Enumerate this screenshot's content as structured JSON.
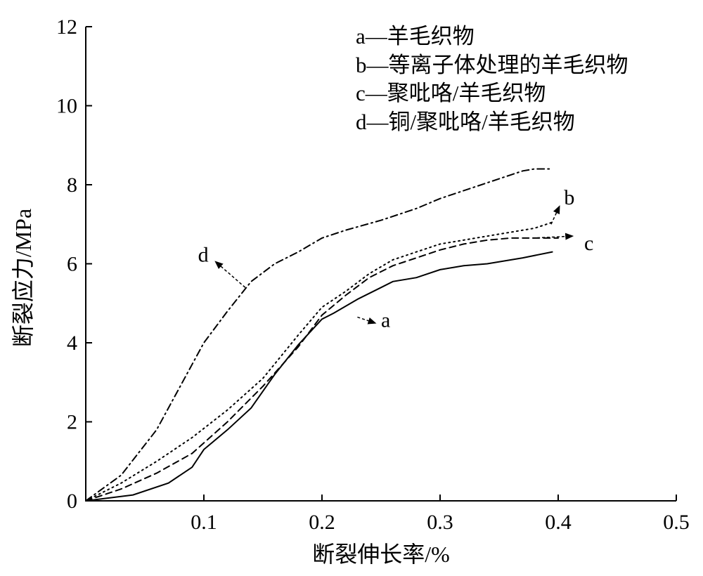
{
  "chart_data": {
    "type": "line",
    "title": "",
    "xlabel": "断裂伸长率/%",
    "ylabel": "断裂应力/MPa",
    "xlim": [
      0,
      0.5
    ],
    "ylim": [
      0,
      12
    ],
    "xticks": [
      "0.1",
      "0.2",
      "0.3",
      "0.4",
      "0.5"
    ],
    "yticks": [
      "0",
      "2",
      "4",
      "6",
      "8",
      "10",
      "12"
    ],
    "grid": false,
    "legend_position": "top-right",
    "legend": [
      "a—羊毛织物",
      "b—等离子体处理的羊毛织物",
      "c—聚吡咯/羊毛织物",
      "d—铜/聚吡咯/羊毛织物"
    ],
    "series": [
      {
        "name": "a",
        "style": "solid",
        "x": [
          0,
          0.04,
          0.07,
          0.09,
          0.1,
          0.12,
          0.14,
          0.16,
          0.18,
          0.2,
          0.21,
          0.23,
          0.25,
          0.26,
          0.28,
          0.3,
          0.32,
          0.34,
          0.37,
          0.395
        ],
        "y": [
          0,
          0.15,
          0.45,
          0.85,
          1.3,
          1.8,
          2.35,
          3.2,
          3.95,
          4.6,
          4.75,
          5.1,
          5.4,
          5.55,
          5.65,
          5.85,
          5.95,
          6.0,
          6.15,
          6.3
        ]
      },
      {
        "name": "b",
        "style": "dotted",
        "x": [
          0,
          0.03,
          0.06,
          0.09,
          0.12,
          0.15,
          0.18,
          0.2,
          0.22,
          0.24,
          0.26,
          0.28,
          0.3,
          0.32,
          0.34,
          0.36,
          0.38,
          0.39,
          0.395
        ],
        "y": [
          0,
          0.45,
          1.0,
          1.6,
          2.3,
          3.1,
          4.2,
          4.9,
          5.3,
          5.75,
          6.1,
          6.3,
          6.5,
          6.6,
          6.7,
          6.8,
          6.9,
          7.0,
          7.05
        ]
      },
      {
        "name": "c",
        "style": "dashed",
        "x": [
          0,
          0.03,
          0.06,
          0.09,
          0.12,
          0.15,
          0.18,
          0.2,
          0.22,
          0.24,
          0.26,
          0.28,
          0.3,
          0.32,
          0.34,
          0.36,
          0.38,
          0.4
        ],
        "y": [
          0,
          0.3,
          0.7,
          1.2,
          2.0,
          2.9,
          3.9,
          4.7,
          5.2,
          5.65,
          5.95,
          6.15,
          6.35,
          6.5,
          6.6,
          6.65,
          6.65,
          6.65
        ]
      },
      {
        "name": "d",
        "style": "dash-dot",
        "x": [
          0,
          0.03,
          0.06,
          0.08,
          0.1,
          0.12,
          0.14,
          0.16,
          0.18,
          0.2,
          0.22,
          0.25,
          0.28,
          0.3,
          0.33,
          0.36,
          0.37,
          0.38,
          0.395
        ],
        "y": [
          0,
          0.65,
          1.8,
          2.9,
          4.0,
          4.8,
          5.55,
          6.0,
          6.3,
          6.65,
          6.85,
          7.1,
          7.4,
          7.65,
          7.95,
          8.25,
          8.35,
          8.4,
          8.4
        ]
      }
    ],
    "curve_labels": [
      "a",
      "b",
      "c",
      "d"
    ]
  }
}
